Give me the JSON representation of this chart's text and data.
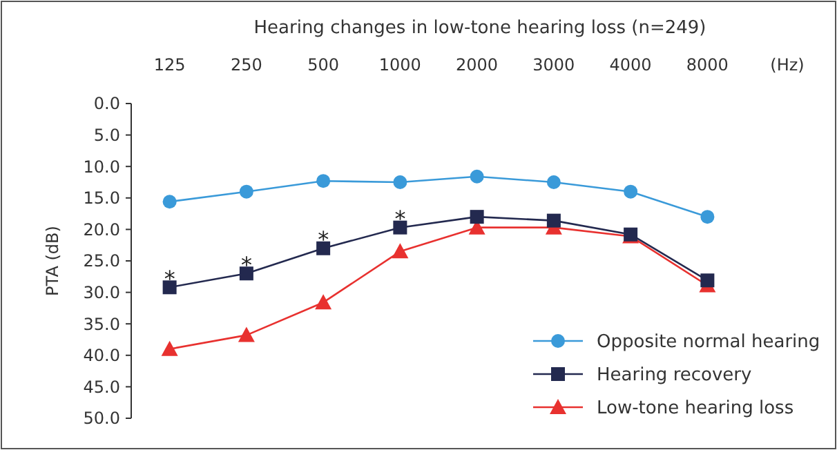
{
  "chart_data": {
    "type": "line",
    "title": "Hearing changes in low-tone hearing loss (n=249)",
    "xlabel": "(Hz)",
    "ylabel": "PTA (dB)",
    "categories": [
      "125",
      "250",
      "500",
      "1000",
      "2000",
      "3000",
      "4000",
      "8000"
    ],
    "series": [
      {
        "name": "Opposite normal hearing",
        "color": "#3a9ad9",
        "marker": "circle",
        "values": [
          15.6,
          14.0,
          12.3,
          12.5,
          11.6,
          12.5,
          14.0,
          18.0
        ]
      },
      {
        "name": "Hearing recovery",
        "color": "#23294f",
        "marker": "square",
        "values": [
          29.2,
          27.0,
          23.0,
          19.7,
          18.0,
          18.6,
          20.8,
          28.1
        ]
      },
      {
        "name": "Low-tone hearing loss",
        "color": "#e8312f",
        "marker": "triangle",
        "values": [
          39.0,
          36.8,
          31.6,
          23.5,
          19.7,
          19.7,
          21.1,
          28.9
        ]
      }
    ],
    "ylim": [
      50,
      0
    ],
    "yticks": [
      {
        "value": 0,
        "label": "0.0"
      },
      {
        "value": 5,
        "label": "5.0"
      },
      {
        "value": 10,
        "label": "10.0"
      },
      {
        "value": 15,
        "label": "15.0"
      },
      {
        "value": 20,
        "label": "20.0"
      },
      {
        "value": 25,
        "label": "25.0"
      },
      {
        "value": 30,
        "label": "30.0"
      },
      {
        "value": 35,
        "label": "35.0"
      },
      {
        "value": 40,
        "label": "40.0"
      },
      {
        "value": 45,
        "label": "45.0"
      },
      {
        "value": 50,
        "label": "50.0"
      }
    ],
    "annotations": [
      {
        "text": "*",
        "x": "125",
        "y": 29.2
      },
      {
        "text": "*",
        "x": "250",
        "y": 27.0
      },
      {
        "text": "*",
        "x": "500",
        "y": 23.0
      },
      {
        "text": "*",
        "x": "1000",
        "y": 19.7
      }
    ],
    "legend": "bottom right",
    "grid": false,
    "line_style": "solid"
  }
}
